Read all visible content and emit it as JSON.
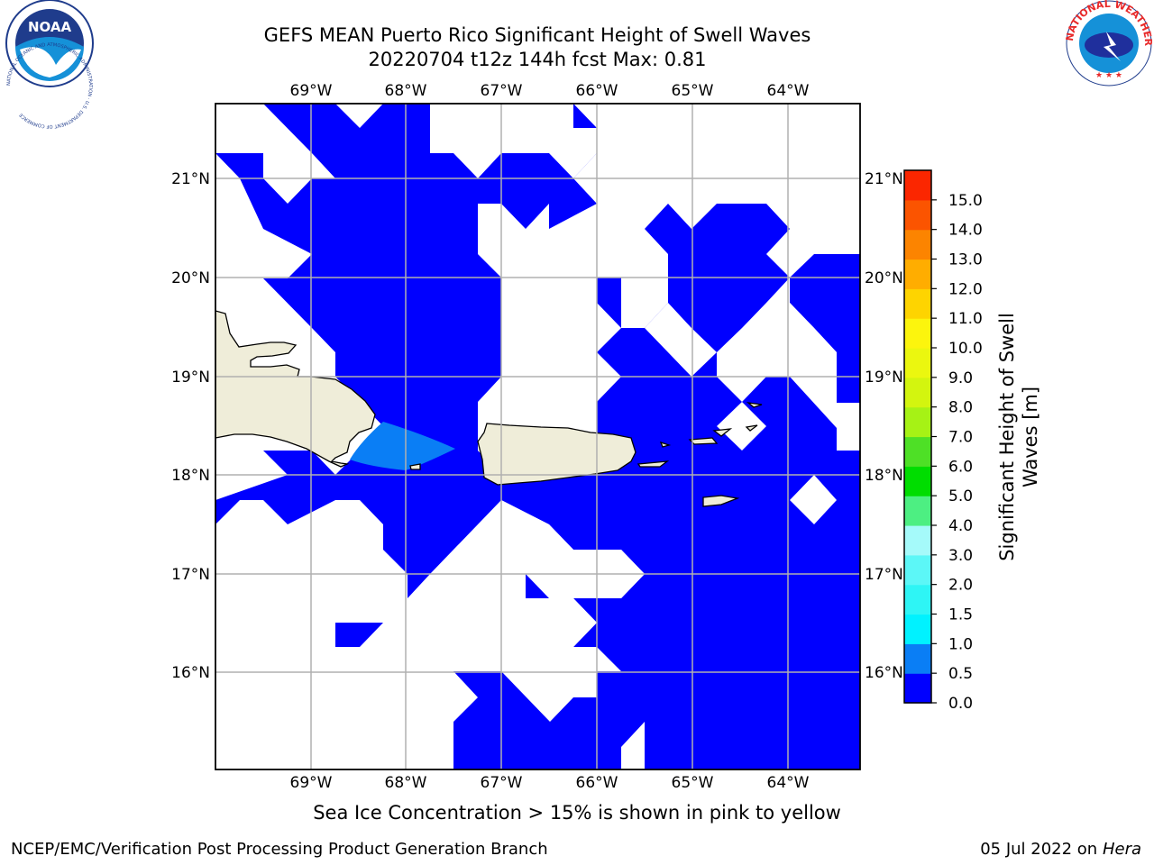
{
  "title": {
    "line1": "GEFS MEAN Puerto Rico Significant Height of Swell Waves",
    "line2": "20220704 t12z 144h fcst   Max: 0.81"
  },
  "map": {
    "lon_labels": [
      "69°W",
      "68°W",
      "67°W",
      "66°W",
      "65°W",
      "64°W"
    ],
    "lat_labels": [
      "21°N",
      "20°N",
      "19°N",
      "18°N",
      "17°N",
      "16°N"
    ],
    "land_color": "#efedd9",
    "water_level_colors": {
      "0.0-0.5": "#0000ff",
      "0.5-1.0": "#0a7ef5"
    }
  },
  "colorbar": {
    "label": "Significant Height of Swell Waves [m]",
    "label_line1": "Significant Height of Swell",
    "label_line2": "Waves [m]",
    "ticks": [
      "0.0",
      "0.5",
      "1.0",
      "1.5",
      "2.0",
      "3.0",
      "4.0",
      "5.0",
      "6.0",
      "7.0",
      "8.0",
      "9.0",
      "10.0",
      "11.0",
      "12.0",
      "13.0",
      "14.0",
      "15.0"
    ],
    "colors": [
      "#0000ff",
      "#0a7ef5",
      "#00dcf8",
      "#2ef2f7",
      "#5cf6f6",
      "#9af8f8",
      "#55ec7c",
      "#00dd00",
      "#44e01a",
      "#9fee10",
      "#d0f40f",
      "#e9f410",
      "#faf410",
      "#fed400",
      "#fcaa00",
      "#fb8203",
      "#fb5205",
      "#fb2400",
      "#fc0000"
    ],
    "bands": [
      "#0000ff",
      "#0a7ef5",
      "#00f2ff",
      "#2ef5f5",
      "#5cf7f7",
      "#a5fafa",
      "#4def82",
      "#00dd00",
      "#4ee026",
      "#a6f215",
      "#d3f50f",
      "#ebf70f",
      "#fcf50d",
      "#fed400",
      "#ffad00",
      "#fc8400",
      "#fb5400",
      "#fb2600"
    ]
  },
  "sea_ice_note": "Sea Ice Concentration > 15% is shown in pink to yellow",
  "footer": {
    "left": "NCEP/EMC/Verification Post Processing Product Generation Branch",
    "date": "05 Jul 2022 on ",
    "machine": "Hera"
  },
  "logos": {
    "noaa_text": "NOAA",
    "noaa_ring": "NATIONAL OCEANIC AND ATMOSPHERIC ADMINISTRATION · U.S. DEPARTMENT OF COMMERCE",
    "nws_ring": "NATIONAL WEATHER SERVICE"
  }
}
